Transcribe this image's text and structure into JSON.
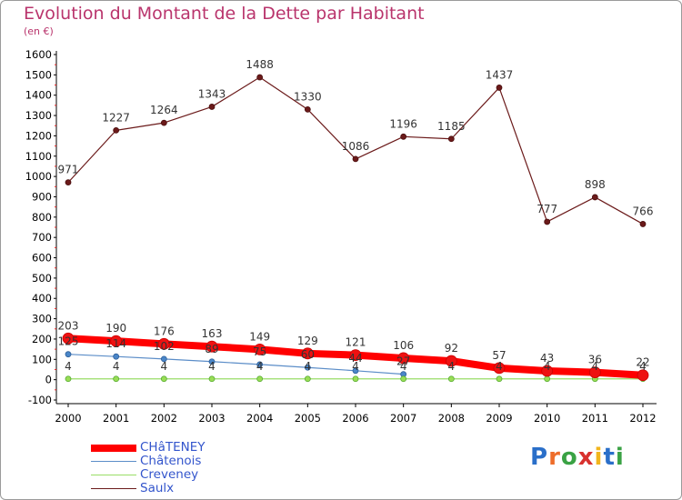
{
  "title": "Evolution du Montant de la Dette par Habitant",
  "subtitle": "(en €)",
  "chart_data": {
    "type": "line",
    "x": [
      "2000",
      "2001",
      "2002",
      "2003",
      "2004",
      "2005",
      "2006",
      "2007",
      "2008",
      "2009",
      "2010",
      "2011",
      "2012"
    ],
    "ylim": [
      -100,
      1600
    ],
    "yticks": [
      -100,
      0,
      100,
      200,
      300,
      400,
      500,
      600,
      700,
      800,
      900,
      1000,
      1100,
      1200,
      1300,
      1400,
      1500,
      1600
    ],
    "grid": false,
    "legend_position": "bottom-left",
    "series": [
      {
        "name": "CHâTENEY",
        "color": "#ff0000",
        "values": [
          203,
          190,
          176,
          163,
          149,
          129,
          121,
          106,
          92,
          57,
          43,
          36,
          22
        ],
        "labels": [
          "203",
          "190",
          "176",
          "163",
          "149",
          "129",
          "121",
          "106",
          "92",
          "57",
          "43",
          "36",
          "22"
        ]
      },
      {
        "name": "Châtenois",
        "color": "#5b8dc8",
        "values": [
          125,
          114,
          102,
          89,
          75,
          60,
          44,
          27,
          null,
          null,
          null,
          null,
          null
        ],
        "labels": [
          "125",
          "114",
          "102",
          "89",
          "75",
          "60",
          "44",
          "27",
          "",
          "",
          "",
          "",
          ""
        ]
      },
      {
        "name": "Creveney",
        "color": "#99dd66",
        "values": [
          4,
          4,
          4,
          4,
          4,
          4,
          4,
          4,
          4,
          4,
          4,
          4,
          4
        ],
        "labels": [
          "4",
          "4",
          "4",
          "4",
          "4",
          "4",
          "4",
          "4",
          "4",
          "4",
          "4",
          "4",
          "4"
        ]
      },
      {
        "name": "Saulx",
        "color": "#6b1a1a",
        "values": [
          971,
          1227,
          1264,
          1343,
          1488,
          1330,
          1086,
          1196,
          1185,
          1437,
          777,
          898,
          766
        ],
        "labels": [
          "971",
          "1227",
          "1264",
          "1343",
          "1488",
          "1330",
          "1086",
          "1196",
          "1185",
          "1437",
          "777",
          "898",
          "766"
        ]
      }
    ]
  },
  "logo": {
    "text": "Proxiti",
    "letters": [
      "P",
      "r",
      "o",
      "x",
      "i",
      "t",
      "i"
    ],
    "colors": [
      "#2a6fc9",
      "#ee6d2a",
      "#3aa244",
      "#d8312e",
      "#f2b51c",
      "#2a6fc9",
      "#3aa244"
    ]
  }
}
